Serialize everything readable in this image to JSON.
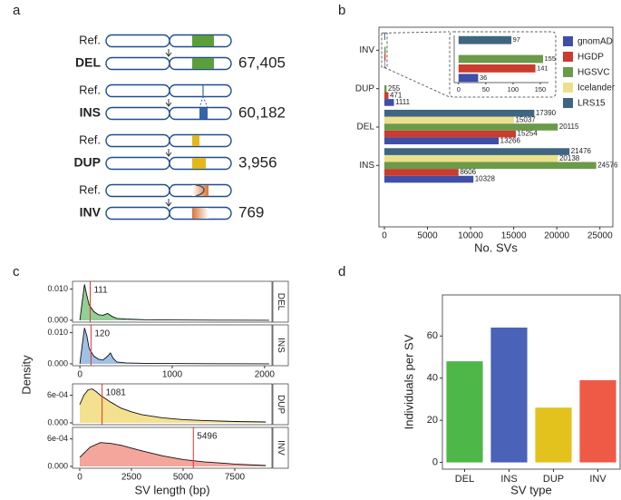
{
  "panel_labels": [
    "a",
    "b",
    "c",
    "d"
  ],
  "sv_diagram": {
    "ref_label": "Ref.",
    "rows": [
      {
        "type": "DEL",
        "count": "67,405",
        "color": "#5c9e3a"
      },
      {
        "type": "INS",
        "count": "60,182",
        "color": "#3a64a8"
      },
      {
        "type": "DUP",
        "count": "3,956",
        "color": "#e2b81c"
      },
      {
        "type": "INV",
        "count": "769",
        "color": "#d8743a"
      }
    ]
  },
  "chart_data": [
    {
      "type": "hbar",
      "categories": [
        "INV",
        "DUP",
        "DEL",
        "INS"
      ],
      "series": [
        {
          "name": "gnomAD",
          "color": "#3f4fa8",
          "values": [
            36,
            1111,
            13266,
            10328
          ]
        },
        {
          "name": "HGDP",
          "color": "#cb3b2f",
          "values": [
            141,
            471,
            15254,
            8606
          ]
        },
        {
          "name": "HGSVC",
          "color": "#6b9a49",
          "values": [
            155,
            255,
            20115,
            24576
          ]
        },
        {
          "name": "Icelander",
          "color": "#ece08c",
          "values": [
            null,
            null,
            15037,
            20138
          ]
        },
        {
          "name": "LRS15",
          "color": "#3e6680",
          "values": [
            97,
            null,
            17390,
            21476
          ]
        }
      ],
      "xlim": [
        -630,
        26500
      ],
      "xticks": [
        0,
        5000,
        10000,
        15000,
        20000,
        25000
      ],
      "xlabel": "No. SVs",
      "legend": "right",
      "inset": {
        "category": "INV",
        "xlim": [
          -8,
          165
        ],
        "xticks": [
          0,
          50,
          100,
          150
        ]
      }
    },
    {
      "type": "density",
      "ylabel": "Density",
      "xlabel": "SV length (bp)",
      "median_color": "#e0352d",
      "facets": [
        {
          "name": "DEL",
          "color": "#7fc583",
          "median": 111,
          "xlim": [
            -80,
            2080
          ],
          "ylim": [
            -0.0006,
            0.0125
          ],
          "yticks": [
            {
              "value": 0,
              "label": "0.000"
            },
            {
              "value": 0.01,
              "label": "0.010"
            }
          ],
          "x": [
            0,
            25,
            50,
            75,
            100,
            150,
            200,
            250,
            300,
            350,
            400,
            500,
            700,
            1000,
            1500,
            2050
          ],
          "y": [
            0,
            0.006,
            0.0115,
            0.008,
            0.005,
            0.0028,
            0.0018,
            0.0016,
            0.0022,
            0.0012,
            0.0006,
            0.0004,
            0.0002,
            0.0001,
            5e-05,
            2e-05
          ]
        },
        {
          "name": "INS",
          "color": "#8fb5df",
          "median": 120,
          "xlim": [
            -80,
            2080
          ],
          "ylim": [
            -0.0006,
            0.0125
          ],
          "yticks": [
            {
              "value": 0,
              "label": "0.000"
            },
            {
              "value": 0.01,
              "label": "0.010"
            }
          ],
          "xticks": [
            0,
            1000,
            2000
          ],
          "x": [
            0,
            25,
            50,
            75,
            100,
            150,
            200,
            250,
            300,
            330,
            360,
            400,
            500,
            700,
            1000,
            1500,
            2050
          ],
          "y": [
            0,
            0.006,
            0.0115,
            0.009,
            0.005,
            0.0025,
            0.0015,
            0.0012,
            0.0025,
            0.0035,
            0.0018,
            0.0006,
            0.0003,
            0.00015,
            0.0001,
            5e-05,
            2e-05
          ]
        },
        {
          "name": "DUP",
          "color": "#f1dc7b",
          "median": 1081,
          "xlim": [
            -350,
            9300
          ],
          "ylim": [
            -4e-05,
            0.00085
          ],
          "yticks": [
            {
              "value": 0,
              "label": "0.000"
            },
            {
              "value": 0.0006,
              "label": "6e-04"
            }
          ],
          "x": [
            0,
            200,
            400,
            600,
            800,
            1000,
            1500,
            2000,
            2500,
            3000,
            4000,
            5000,
            6000,
            7500,
            9000
          ],
          "y": [
            0.0004,
            0.0006,
            0.00072,
            0.00074,
            0.00068,
            0.0006,
            0.00045,
            0.00032,
            0.00024,
            0.00018,
            0.00011,
            7e-05,
            5e-05,
            3e-05,
            2e-05
          ]
        },
        {
          "name": "INV",
          "color": "#f2968b",
          "median": 5496,
          "xlim": [
            -350,
            9300
          ],
          "ylim": [
            -4e-05,
            0.00085
          ],
          "yticks": [
            {
              "value": 0,
              "label": "0.000"
            },
            {
              "value": 0.0006,
              "label": "6e-04"
            }
          ],
          "xticks": [
            0,
            2500,
            5000,
            7500
          ],
          "x": [
            0,
            500,
            1000,
            1500,
            2000,
            2500,
            3000,
            4000,
            5000,
            6000,
            7500,
            9000
          ],
          "y": [
            0.0002,
            0.00042,
            0.00052,
            0.0005,
            0.00046,
            0.0004,
            0.00034,
            0.00023,
            0.00015,
            0.0001,
            5e-05,
            2e-05
          ]
        }
      ]
    },
    {
      "type": "bar",
      "categories": [
        "DEL",
        "INS",
        "DUP",
        "INV"
      ],
      "values": [
        48,
        64,
        26,
        39
      ],
      "colors": [
        "#4db848",
        "#4a62b7",
        "#e3c21d",
        "#ee5a45"
      ],
      "ylim": [
        -3.2,
        79.5
      ],
      "yticks": [
        0,
        20,
        40,
        60
      ],
      "xlabel": "SV type",
      "ylabel": "Individuals per SV"
    }
  ]
}
